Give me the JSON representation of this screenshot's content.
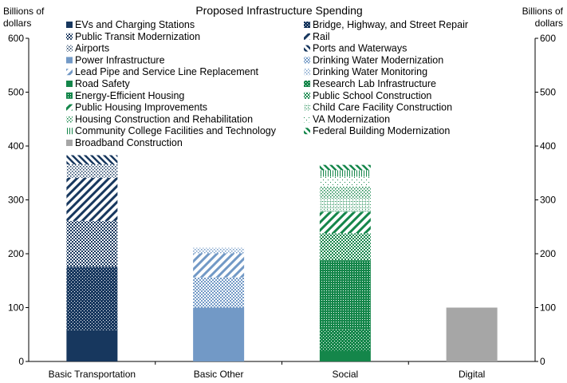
{
  "chart_data": {
    "type": "bar",
    "stacked": true,
    "title": "Proposed Infrastructure Spending",
    "ylabel_left": "Billions of dollars",
    "ylabel_right": "Billions of dollars",
    "ylim": [
      0,
      600
    ],
    "yticks": [
      0,
      100,
      200,
      300,
      400,
      500,
      600
    ],
    "grid": false,
    "legend_position": "top",
    "categories": [
      "Basic Transportation",
      "Basic Other",
      "Social",
      "Digital"
    ],
    "series": [
      {
        "name": "EVs and Charging Stations",
        "color": "#17375e",
        "pattern": "solid",
        "values": [
          58,
          0,
          0,
          0
        ]
      },
      {
        "name": "Bridge, Highway, and Street Repair",
        "color": "#17375e",
        "pattern": "diamond",
        "values": [
          118,
          0,
          0,
          0
        ]
      },
      {
        "name": "Public Transit Modernization",
        "color": "#17375e",
        "pattern": "check",
        "values": [
          85,
          0,
          0,
          0
        ]
      },
      {
        "name": "Rail",
        "color": "#17375e",
        "pattern": "wide-diag",
        "values": [
          80,
          0,
          0,
          0
        ]
      },
      {
        "name": "Airports",
        "color": "#17375e",
        "pattern": "dots",
        "values": [
          25,
          0,
          0,
          0
        ]
      },
      {
        "name": "Ports and Waterways",
        "color": "#17375e",
        "pattern": "dash-diag",
        "values": [
          17,
          0,
          0,
          0
        ]
      },
      {
        "name": "Power Infrastructure",
        "color": "#7299c6",
        "pattern": "solid",
        "values": [
          0,
          100,
          0,
          0
        ]
      },
      {
        "name": "Drinking Water Modernization",
        "color": "#7299c6",
        "pattern": "check",
        "values": [
          0,
          56,
          0,
          0
        ]
      },
      {
        "name": "Lead Pipe and Service Line Replacement",
        "color": "#7299c6",
        "pattern": "wide-diag",
        "values": [
          0,
          45,
          0,
          0
        ]
      },
      {
        "name": "Drinking Water Monitoring",
        "color": "#7299c6",
        "pattern": "dots",
        "values": [
          0,
          10,
          0,
          0
        ]
      },
      {
        "name": "Road Safety",
        "color": "#14864a",
        "pattern": "solid",
        "values": [
          0,
          0,
          20,
          0
        ]
      },
      {
        "name": "Research Lab Infrastructure",
        "color": "#14864a",
        "pattern": "diamond",
        "values": [
          0,
          0,
          40,
          0
        ]
      },
      {
        "name": "Energy-Efficient Housing",
        "color": "#14864a",
        "pattern": "dense",
        "values": [
          0,
          0,
          128,
          0
        ]
      },
      {
        "name": "Public School Construction",
        "color": "#14864a",
        "pattern": "check",
        "values": [
          0,
          0,
          50,
          0
        ]
      },
      {
        "name": "Public Housing Improvements",
        "color": "#14864a",
        "pattern": "wide-diag",
        "values": [
          0,
          0,
          40,
          0
        ]
      },
      {
        "name": "Child Care Facility Construction",
        "color": "#14864a",
        "pattern": "check-light",
        "values": [
          0,
          0,
          25,
          0
        ]
      },
      {
        "name": "Housing Construction and Rehabilitation",
        "color": "#14864a",
        "pattern": "dots",
        "values": [
          0,
          0,
          22,
          0
        ]
      },
      {
        "name": "VA Modernization",
        "color": "#14864a",
        "pattern": "sparse-dots",
        "values": [
          0,
          0,
          18,
          0
        ]
      },
      {
        "name": "Community College Facilities and Technology",
        "color": "#14864a",
        "pattern": "vertical",
        "values": [
          0,
          0,
          12,
          0
        ]
      },
      {
        "name": "Federal Building Modernization",
        "color": "#14864a",
        "pattern": "dash-diag",
        "values": [
          0,
          0,
          10,
          0
        ]
      },
      {
        "name": "Broadband Construction",
        "color": "#a6a6a6",
        "pattern": "solid",
        "values": [
          0,
          0,
          0,
          100
        ]
      }
    ]
  }
}
